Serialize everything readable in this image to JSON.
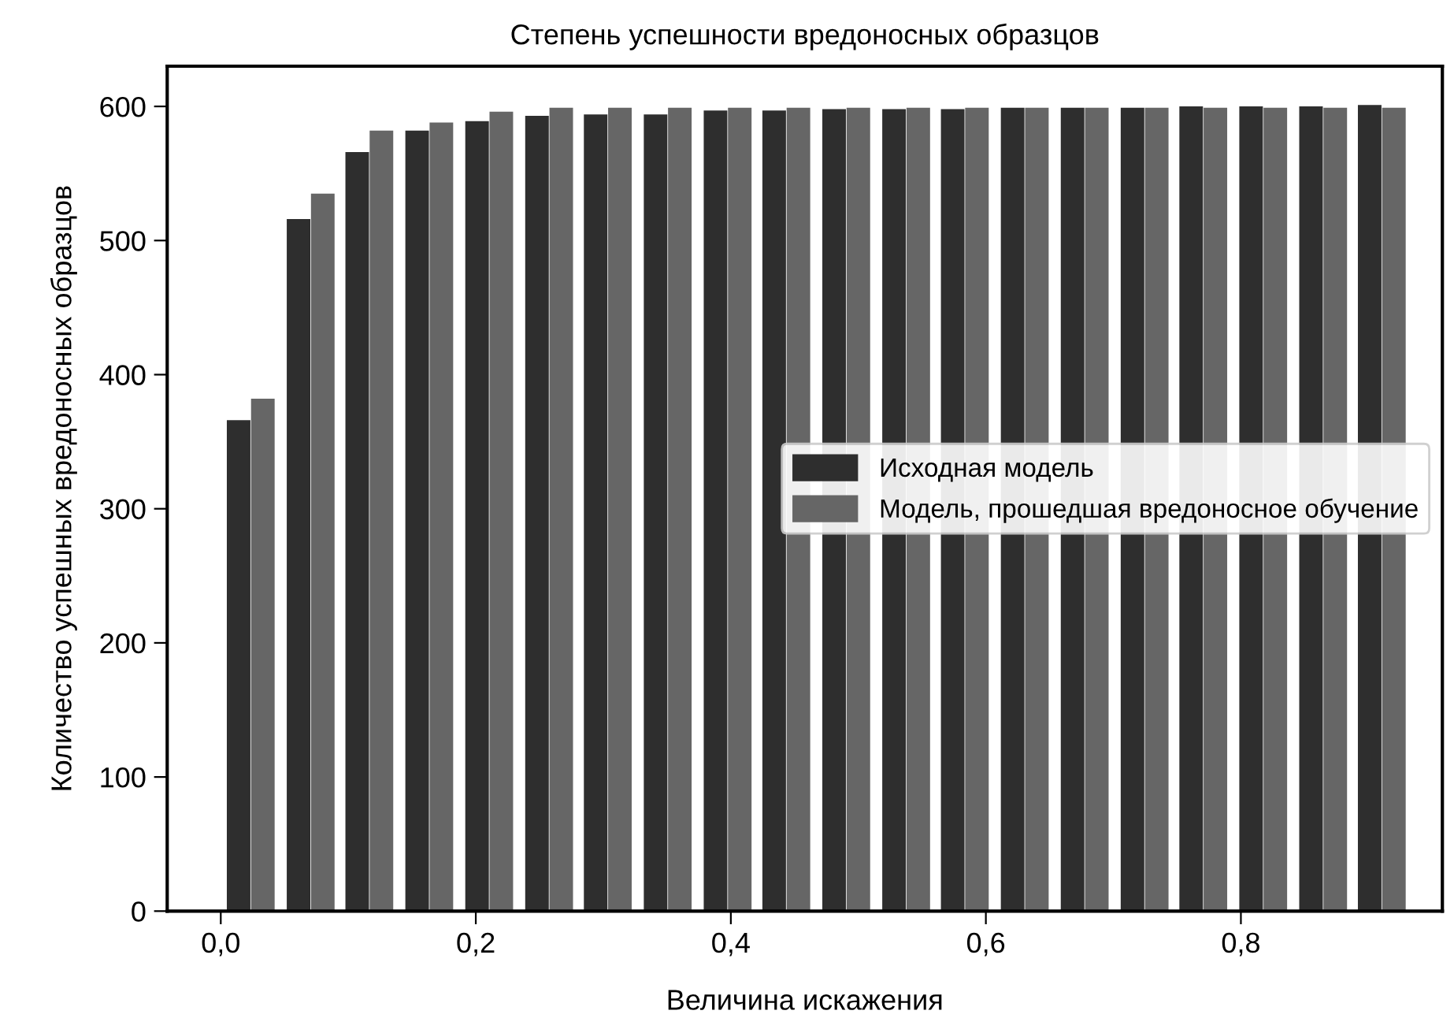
{
  "chart_data": {
    "type": "bar",
    "title": "Степень успешности вредоносных образцов",
    "xlabel": "Величина искажения",
    "ylabel": "Количество успешных вредоносных образцов",
    "series": [
      {
        "name": "Исходная модель",
        "color": "#2e2e2e",
        "x": [
          0.014,
          0.061,
          0.107,
          0.154,
          0.201,
          0.248,
          0.294,
          0.341,
          0.388,
          0.434,
          0.481,
          0.528,
          0.574,
          0.621,
          0.668,
          0.715,
          0.761,
          0.808,
          0.855,
          0.901
        ],
        "values": [
          366,
          516,
          566,
          582,
          589,
          593,
          594,
          594,
          597,
          597,
          598,
          598,
          598,
          599,
          599,
          599,
          600,
          600,
          600,
          601
        ]
      },
      {
        "name": "Модель, прошедшая вредоносное обучение",
        "color": "#666666",
        "x": [
          0.033,
          0.08,
          0.126,
          0.173,
          0.22,
          0.267,
          0.313,
          0.36,
          0.407,
          0.453,
          0.5,
          0.547,
          0.593,
          0.64,
          0.687,
          0.734,
          0.78,
          0.827,
          0.874,
          0.92
        ],
        "values": [
          382,
          535,
          582,
          588,
          596,
          599,
          599,
          599,
          599,
          599,
          599,
          599,
          599,
          599,
          599,
          599,
          599,
          599,
          599,
          599
        ]
      }
    ],
    "xlim": [
      -0.042,
      0.958
    ],
    "xticks": [
      {
        "value": 0.0,
        "label": "0,0"
      },
      {
        "value": 0.2,
        "label": "0,2"
      },
      {
        "value": 0.4,
        "label": "0,4"
      },
      {
        "value": 0.6,
        "label": "0,6"
      },
      {
        "value": 0.8,
        "label": "0,8"
      }
    ],
    "ylim": [
      0,
      630
    ],
    "yticks": [
      0,
      100,
      200,
      300,
      400,
      500,
      600
    ],
    "grid": false,
    "legend": "right"
  }
}
